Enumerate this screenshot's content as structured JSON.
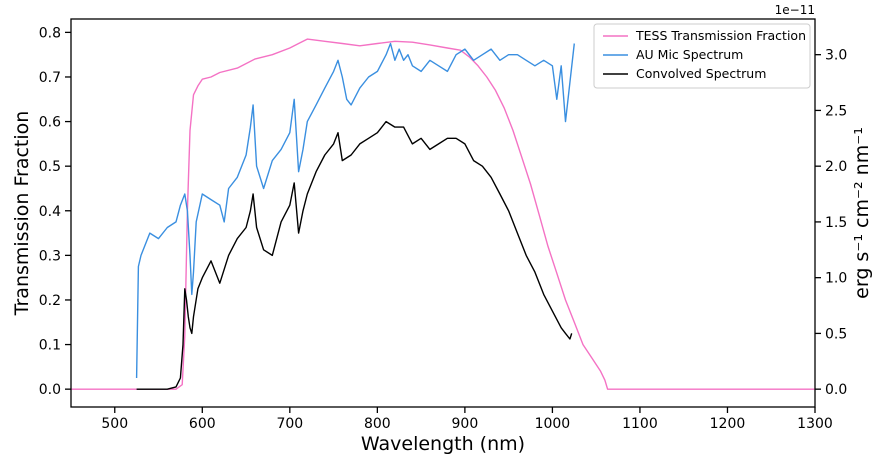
{
  "chart_data": {
    "type": "line",
    "xlabel": "Wavelength (nm)",
    "ylabel_left": "Transmission Fraction",
    "ylabel_right": "erg s⁻¹ cm⁻² nm⁻¹",
    "right_axis_offset_label": "1e−11",
    "xlim": [
      450,
      1300
    ],
    "ylim_left": [
      -0.04,
      0.83
    ],
    "ylim_right": [
      -0.16,
      3.32
    ],
    "x_ticks": [
      "500",
      "600",
      "700",
      "800",
      "900",
      "1000",
      "1100",
      "1200",
      "1300"
    ],
    "y_ticks_left": [
      "0.0",
      "0.1",
      "0.2",
      "0.3",
      "0.4",
      "0.5",
      "0.6",
      "0.7",
      "0.8"
    ],
    "y_ticks_right": [
      "0.0",
      "0.5",
      "1.0",
      "1.5",
      "2.0",
      "2.5",
      "3.0"
    ],
    "legend_position": "top-right",
    "grid": false,
    "series": [
      {
        "name": "TESS Transmission Fraction",
        "axis": "left",
        "color": "#f472c4",
        "x": [
          450,
          570,
          577,
          580,
          583,
          586,
          590,
          595,
          600,
          610,
          620,
          640,
          660,
          680,
          700,
          710,
          720,
          740,
          760,
          780,
          800,
          820,
          840,
          860,
          880,
          895,
          905,
          915,
          925,
          935,
          945,
          955,
          965,
          975,
          985,
          995,
          1005,
          1015,
          1025,
          1035,
          1045,
          1055,
          1060,
          1063,
          1100,
          1200,
          1300
        ],
        "y": [
          0.0,
          0.0,
          0.01,
          0.12,
          0.4,
          0.58,
          0.66,
          0.68,
          0.695,
          0.7,
          0.71,
          0.72,
          0.74,
          0.75,
          0.765,
          0.775,
          0.785,
          0.78,
          0.775,
          0.77,
          0.775,
          0.78,
          0.778,
          0.772,
          0.765,
          0.76,
          0.745,
          0.725,
          0.7,
          0.67,
          0.63,
          0.58,
          0.52,
          0.46,
          0.39,
          0.32,
          0.26,
          0.2,
          0.15,
          0.1,
          0.07,
          0.04,
          0.02,
          0.0,
          0.0,
          0.0,
          0.0
        ]
      },
      {
        "name": "AU Mic Spectrum",
        "axis": "right",
        "color": "#3a8fe0",
        "x": [
          525,
          527,
          530,
          540,
          550,
          560,
          570,
          575,
          580,
          583,
          586,
          588,
          590,
          593,
          600,
          610,
          620,
          625,
          630,
          640,
          650,
          655,
          658,
          662,
          670,
          680,
          690,
          700,
          705,
          710,
          715,
          720,
          730,
          740,
          750,
          755,
          760,
          765,
          770,
          780,
          790,
          800,
          810,
          815,
          820,
          825,
          830,
          835,
          840,
          850,
          860,
          870,
          880,
          890,
          900,
          910,
          920,
          930,
          940,
          950,
          960,
          970,
          980,
          990,
          1000,
          1005,
          1010,
          1015,
          1020,
          1025
        ],
        "y": [
          0.1,
          1.1,
          1.2,
          1.4,
          1.35,
          1.45,
          1.5,
          1.65,
          1.75,
          1.6,
          1.2,
          0.85,
          1.05,
          1.5,
          1.75,
          1.7,
          1.65,
          1.5,
          1.8,
          1.9,
          2.1,
          2.35,
          2.55,
          2.0,
          1.8,
          2.05,
          2.15,
          2.3,
          2.6,
          1.95,
          2.15,
          2.4,
          2.55,
          2.7,
          2.85,
          2.95,
          2.8,
          2.6,
          2.55,
          2.7,
          2.8,
          2.85,
          3.0,
          3.1,
          2.95,
          3.05,
          2.95,
          3.0,
          2.9,
          2.85,
          2.95,
          2.9,
          2.85,
          3.0,
          3.05,
          2.95,
          3.0,
          3.05,
          2.95,
          3.0,
          3.0,
          2.95,
          2.9,
          2.95,
          2.9,
          2.6,
          2.9,
          2.4,
          2.75,
          3.1
        ]
      },
      {
        "name": "Convolved Spectrum",
        "axis": "right",
        "color": "#000000",
        "x": [
          525,
          560,
          570,
          575,
          578,
          580,
          582,
          584,
          586,
          588,
          590,
          595,
          600,
          610,
          620,
          630,
          640,
          650,
          655,
          658,
          662,
          670,
          680,
          690,
          700,
          705,
          710,
          715,
          720,
          730,
          740,
          750,
          755,
          760,
          770,
          780,
          790,
          800,
          810,
          820,
          830,
          840,
          850,
          860,
          870,
          880,
          890,
          900,
          910,
          920,
          930,
          940,
          950,
          960,
          970,
          980,
          990,
          1000,
          1010,
          1015,
          1020,
          1022
        ],
        "y": [
          0.0,
          0.0,
          0.02,
          0.1,
          0.4,
          0.9,
          0.8,
          0.65,
          0.55,
          0.5,
          0.65,
          0.9,
          1.0,
          1.15,
          0.95,
          1.2,
          1.35,
          1.45,
          1.6,
          1.75,
          1.45,
          1.25,
          1.2,
          1.5,
          1.65,
          1.85,
          1.4,
          1.6,
          1.75,
          1.95,
          2.1,
          2.2,
          2.3,
          2.05,
          2.1,
          2.2,
          2.25,
          2.3,
          2.4,
          2.35,
          2.35,
          2.2,
          2.25,
          2.15,
          2.2,
          2.25,
          2.25,
          2.2,
          2.05,
          2.0,
          1.9,
          1.75,
          1.6,
          1.4,
          1.2,
          1.05,
          0.85,
          0.7,
          0.55,
          0.5,
          0.45,
          0.5
        ]
      }
    ]
  }
}
